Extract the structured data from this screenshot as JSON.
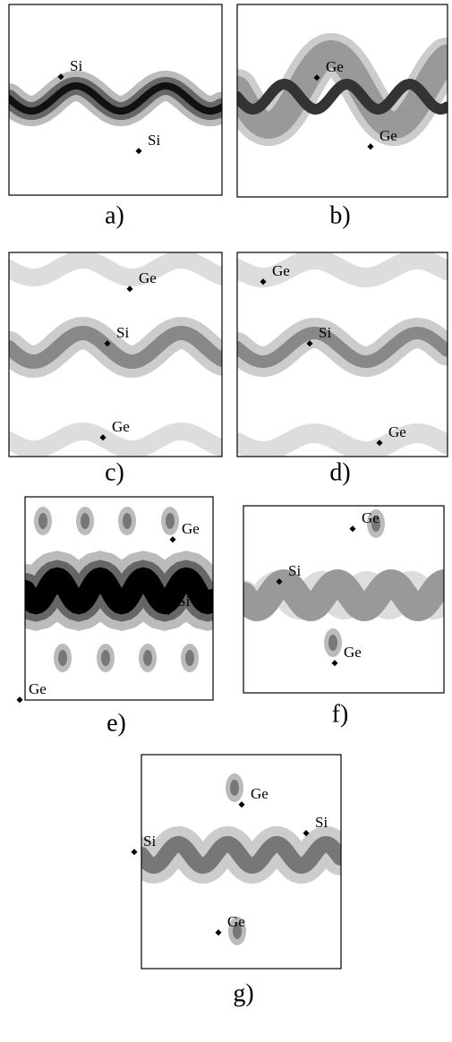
{
  "panels": [
    {
      "caption": "a)",
      "labels": [
        "Si",
        "Si"
      ]
    },
    {
      "caption": "b)",
      "labels": [
        "Ge",
        "Ge"
      ]
    },
    {
      "caption": "c)",
      "labels": [
        "Ge",
        "Si",
        "Ge"
      ]
    },
    {
      "caption": "d)",
      "labels": [
        "Ge",
        "Si",
        "Ge"
      ]
    },
    {
      "caption": "e)",
      "labels": [
        "Ge",
        "Si",
        "Ge"
      ]
    },
    {
      "caption": "f)",
      "labels": [
        "Ge",
        "Si",
        "Ge"
      ]
    },
    {
      "caption": "g)",
      "labels": [
        "Ge",
        "Si",
        "Si",
        "Ge"
      ]
    }
  ]
}
